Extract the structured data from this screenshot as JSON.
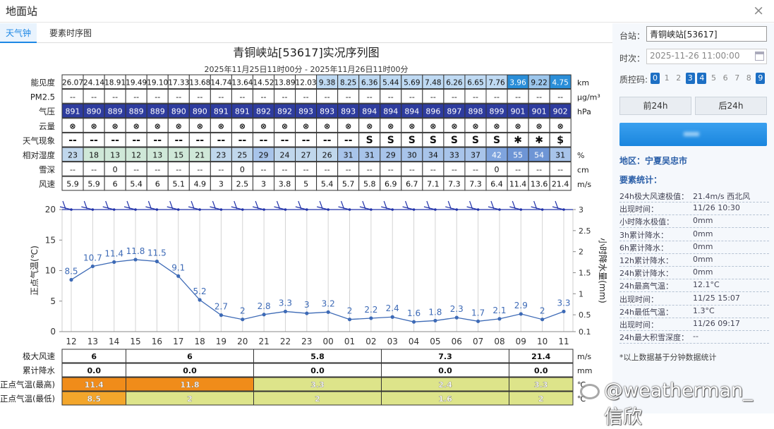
{
  "window": {
    "title": "地面站",
    "close_icon": "close-icon"
  },
  "tabs": [
    {
      "label": "天气钟",
      "active": true
    },
    {
      "label": "要素时序图",
      "active": false
    }
  ],
  "chart": {
    "title": "青铜峡站[53617]实况序列图",
    "subtitle": "2025年11月25日11时00分 - 2025年11月26日11时00分"
  },
  "table": {
    "hours": [
      "12",
      "13",
      "14",
      "15",
      "16",
      "17",
      "18",
      "19",
      "20",
      "21",
      "22",
      "23",
      "00",
      "01",
      "02",
      "03",
      "04",
      "05",
      "06",
      "07",
      "08",
      "09",
      "10",
      "11"
    ],
    "rows": [
      {
        "label": "能见度",
        "unit": "km",
        "values": [
          "26.07",
          "24.14",
          "18.91",
          "19.49",
          "19.10",
          "17.33",
          "13.68",
          "14.74",
          "13.64",
          "14.52",
          "13.89",
          "12.03",
          "9.38",
          "8.25",
          "6.36",
          "5.44",
          "5.69",
          "7.48",
          "6.26",
          "6.65",
          "7.76",
          "3.96",
          "9.22",
          "4.75"
        ]
      },
      {
        "label": "PM2.5",
        "unit": "μg/m³",
        "values": [
          "--",
          "--",
          "--",
          "--",
          "--",
          "--",
          "--",
          "--",
          "--",
          "--",
          "--",
          "--",
          "--",
          "--",
          "--",
          "--",
          "--",
          "--",
          "--",
          "--",
          "--",
          "--",
          "--",
          "--"
        ]
      },
      {
        "label": "气压",
        "unit": "hPa",
        "values": [
          "891",
          "890",
          "889",
          "889",
          "889",
          "890",
          "890",
          "891",
          "891",
          "892",
          "892",
          "893",
          "893",
          "893",
          "894",
          "894",
          "894",
          "896",
          "897",
          "898",
          "899",
          "901",
          "901",
          "902"
        ]
      },
      {
        "label": "云量",
        "unit": "",
        "values": [
          "⊗",
          "⊗",
          "⊗",
          "⊗",
          "⊗",
          "⊗",
          "⊗",
          "⊗",
          "⊗",
          "⊗",
          "⊗",
          "⊗",
          "⊗",
          "⊗",
          "⊗",
          "⊗",
          "⊗",
          "⊗",
          "⊗",
          "⊗",
          "⊗",
          "⊗",
          "⊗",
          "⊗"
        ]
      },
      {
        "label": "天气现象",
        "unit": "",
        "values": [
          "--",
          "--",
          "--",
          "--",
          "--",
          "--",
          "--",
          "--",
          "--",
          "--",
          "--",
          "--",
          "--",
          "--",
          "S",
          "S",
          "S",
          "S",
          "S",
          "S",
          "S",
          "✱",
          "✱",
          "$"
        ]
      },
      {
        "label": "相对湿度",
        "unit": "%",
        "values": [
          "23",
          "18",
          "13",
          "12",
          "13",
          "15",
          "21",
          "23",
          "25",
          "29",
          "24",
          "27",
          "26",
          "31",
          "31",
          "29",
          "30",
          "34",
          "33",
          "37",
          "42",
          "55",
          "54",
          "31"
        ]
      },
      {
        "label": "雪深",
        "unit": "cm",
        "values": [
          "--",
          "--",
          "0",
          "--",
          "--",
          "--",
          "--",
          "--",
          "0",
          "--",
          "--",
          "--",
          "--",
          "--",
          "--",
          "--",
          "--",
          "--",
          "--",
          "--",
          "0",
          "--",
          "--",
          "--"
        ]
      },
      {
        "label": "风速",
        "unit": "m/s",
        "values": [
          "5.9",
          "5.9",
          "6",
          "5.4",
          "6",
          "5.1",
          "4.9",
          "3",
          "2.5",
          "3",
          "3.8",
          "5",
          "5.4",
          "5.7",
          "5.8",
          "6.9",
          "6.7",
          "7.1",
          "7.3",
          "7.3",
          "6.4",
          "11.4",
          "13.6",
          "21.4"
        ]
      }
    ]
  },
  "chart_data": {
    "type": "line",
    "x": [
      "12",
      "13",
      "14",
      "15",
      "16",
      "17",
      "18",
      "19",
      "20",
      "21",
      "22",
      "23",
      "00",
      "01",
      "02",
      "03",
      "04",
      "05",
      "06",
      "07",
      "08",
      "09",
      "10",
      "11"
    ],
    "series": [
      {
        "values": [
          8.5,
          10.7,
          11.4,
          11.8,
          11.5,
          9.1,
          5.2,
          2.7,
          2,
          2.8,
          3.3,
          3,
          3.2,
          2,
          2.2,
          2.4,
          1.6,
          1.8,
          2.3,
          1.7,
          2.1,
          2.9,
          2,
          3.3
        ]
      }
    ],
    "ylabel": "正点气温(℃)",
    "y2label": "小时降水量(mm)",
    "ylim": [
      0,
      20
    ],
    "y2lim": [
      0.1,
      3
    ],
    "yticks": [
      "0",
      "5",
      "10",
      "15",
      "20"
    ],
    "y2ticks": [
      "0.1",
      "0.5",
      "1",
      "1.5",
      "2",
      "2.5",
      "3"
    ],
    "grid": true
  },
  "summary": {
    "rows": [
      {
        "label": "极大风速",
        "unit": "m/s",
        "values": [
          "6",
          "6",
          "5.8",
          "7.3",
          "21.4"
        ]
      },
      {
        "label": "累计降水",
        "unit": "mm",
        "values": [
          "0.0",
          "0.0",
          "0.0",
          "0.0",
          "0.0"
        ]
      },
      {
        "label": "正点气温(最高)",
        "unit": "℃",
        "values": [
          "11.4",
          "11.8",
          "3.3",
          "2.4",
          "3.3"
        ]
      },
      {
        "label": "正点气温(最低)",
        "unit": "℃",
        "values": [
          "8.5",
          "2",
          "2",
          "1.6",
          "2"
        ]
      }
    ]
  },
  "watermark": "@weatherman_信欣",
  "side": {
    "station_label": "台站：",
    "station_value": "青铜峡站[53617]",
    "time_label": "时次：",
    "time_value": "2025-11-26 11:00:00",
    "qc_label": "质控码:",
    "qc_codes": [
      {
        "v": "0",
        "on": true
      },
      {
        "v": "1",
        "on": false
      },
      {
        "v": "2",
        "on": false
      },
      {
        "v": "3",
        "on": true
      },
      {
        "v": "4",
        "on": true
      },
      {
        "v": "5",
        "on": false
      },
      {
        "v": "6",
        "on": false
      },
      {
        "v": "7",
        "on": false
      },
      {
        "v": "8",
        "on": false
      },
      {
        "v": "9",
        "on": true
      }
    ],
    "prev_btn": "前24h",
    "next_btn": "后24h",
    "region": "地区：宁夏吴忠市",
    "stats_title": "要素统计：",
    "stats": [
      {
        "k": "24h极大风速极值：",
        "v": "21.4m/s 西北风"
      },
      {
        "k": "出现时间：",
        "v": "11/26 10:30"
      },
      {
        "k": "小时降水极值：",
        "v": "0mm"
      },
      {
        "k": "3h累计降水：",
        "v": "0mm"
      },
      {
        "k": "6h累计降水：",
        "v": "0mm"
      },
      {
        "k": "12h累计降水：",
        "v": "0mm"
      },
      {
        "k": "24h累计降水：",
        "v": "0mm"
      },
      {
        "k": "24h最高气温：",
        "v": "12.1°C"
      },
      {
        "k": "出现时间：",
        "v": "11/25 15:07"
      },
      {
        "k": "24h最低气温：",
        "v": "1.3°C"
      },
      {
        "k": "出现时间：",
        "v": "11/26 09:17"
      },
      {
        "k": "24h最大积雪深度：",
        "v": "--"
      }
    ],
    "note": "*以上数据基于分钟数据统计"
  }
}
